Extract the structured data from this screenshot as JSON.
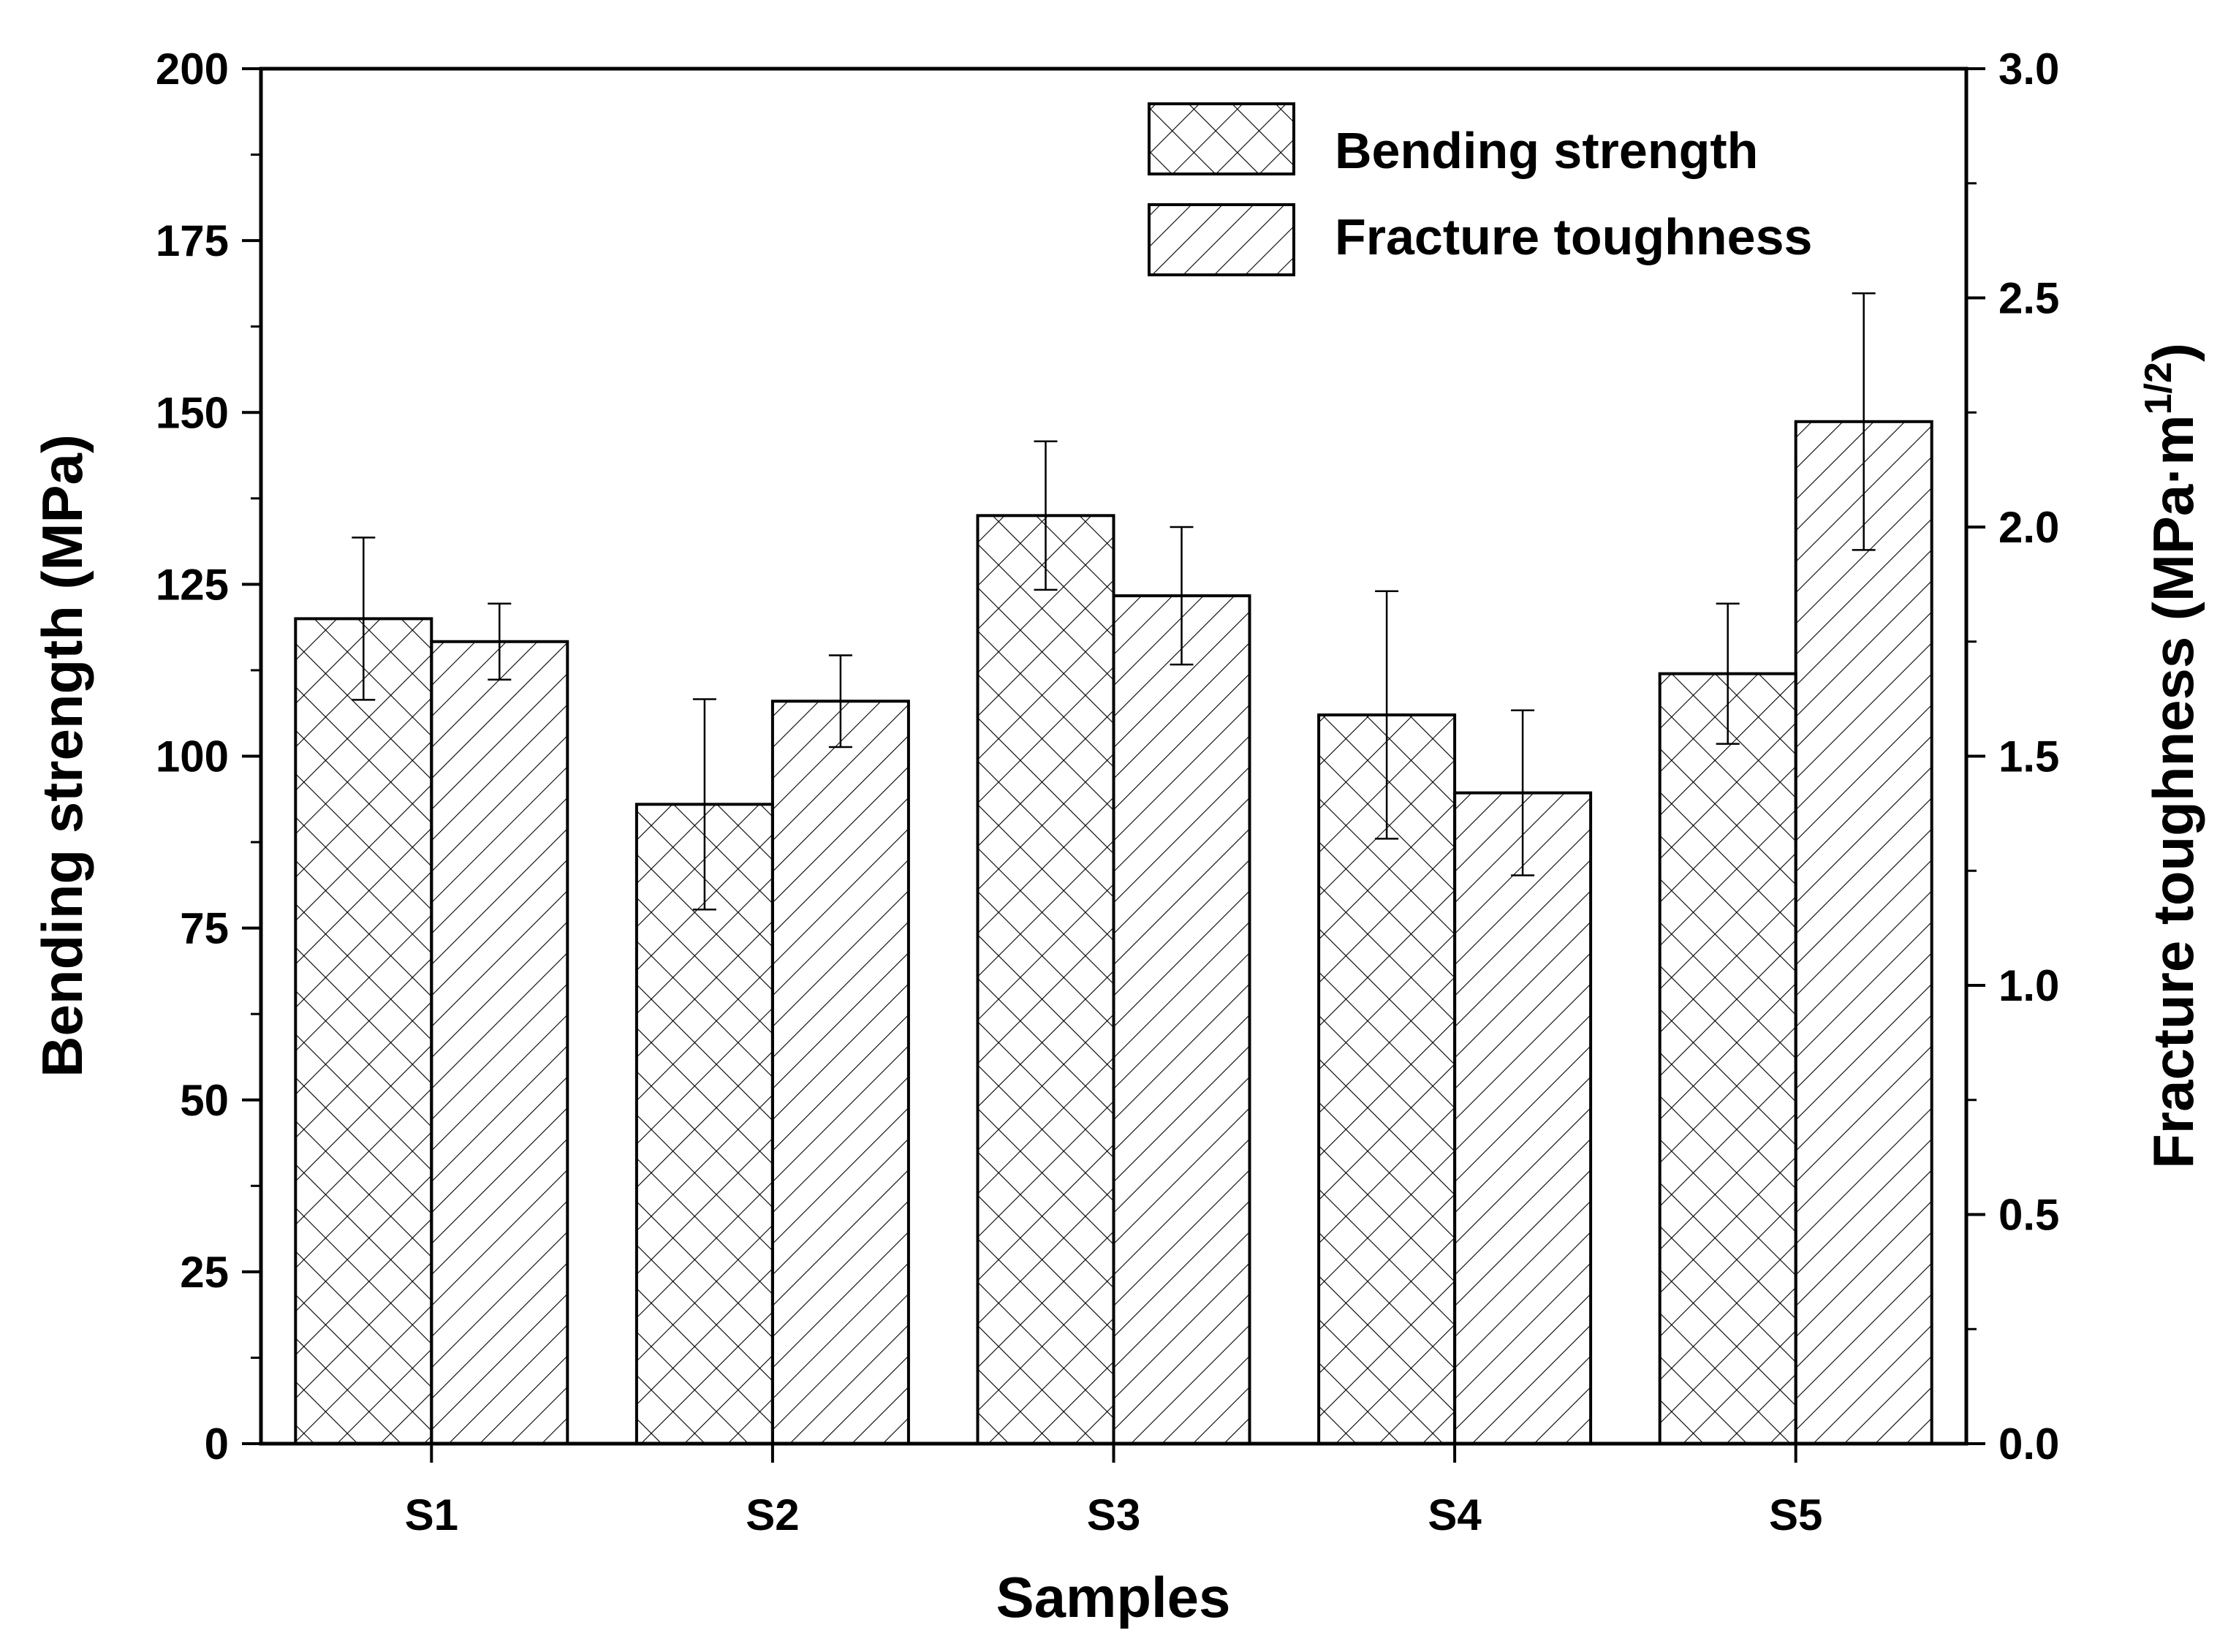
{
  "chart_data": {
    "type": "bar",
    "title": "",
    "categories": [
      "S1",
      "S2",
      "S3",
      "S4",
      "S5"
    ],
    "xlabel": "Samples",
    "series": [
      {
        "name": "Bending strength",
        "axis": "left",
        "pattern": "crosshatch",
        "values": [
          120,
          93,
          135,
          106,
          112
        ],
        "error": [
          11.8,
          15.3,
          10.8,
          18.0,
          10.2
        ]
      },
      {
        "name": "Fracture toughness",
        "axis": "right",
        "pattern": "diagonal",
        "values": [
          1.75,
          1.62,
          1.85,
          1.42,
          2.23
        ],
        "error": [
          0.083,
          0.1,
          0.15,
          0.18,
          0.28
        ]
      }
    ],
    "left_axis": {
      "label": "Bending strength (MPa)",
      "ylim": [
        0,
        200
      ],
      "ticks": [
        "0",
        "25",
        "50",
        "75",
        "100",
        "125",
        "150",
        "175",
        "200"
      ]
    },
    "right_axis": {
      "label_main": "Fracture toughness (MPa·m",
      "label_sup": "1/2",
      "label_close": ")",
      "ylim": [
        0,
        3.0
      ],
      "ticks": [
        "0.0",
        "0.5",
        "1.0",
        "1.5",
        "2.0",
        "2.5",
        "3.0"
      ]
    },
    "legend": {
      "placement": "top-right",
      "entries": [
        "Bending strength",
        "Fracture toughness"
      ]
    },
    "grid": false
  }
}
